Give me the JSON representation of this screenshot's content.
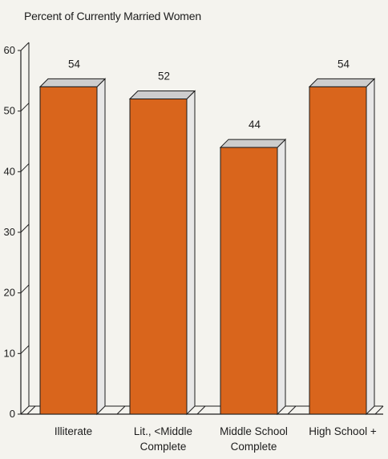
{
  "chart_data": {
    "type": "bar",
    "title": "Percent of Currently Married Women",
    "xlabel": "",
    "ylabel": "",
    "categories": [
      [
        "Illiterate"
      ],
      [
        "Lit., <Middle",
        "Complete"
      ],
      [
        "Middle School",
        "Complete"
      ],
      [
        "High School +"
      ]
    ],
    "values": [
      54,
      52,
      44,
      54
    ],
    "data_labels": [
      "54",
      "52",
      "44",
      "54"
    ],
    "ylim": [
      0,
      60
    ],
    "yticks": [
      "0",
      "10",
      "20",
      "30",
      "40",
      "50",
      "60"
    ],
    "grid": false,
    "legend": "none",
    "style": "3d",
    "colors": {
      "bar_front": "#d9651c",
      "bar_top": "#cdcdcd",
      "bar_side": "#e7e7e7",
      "axis": "#1c1c1c",
      "background": "#f4f3ee"
    }
  }
}
